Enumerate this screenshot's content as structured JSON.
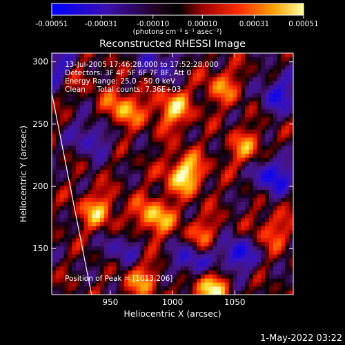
{
  "chart_data": {
    "type": "heatmap",
    "title": "Reconstructed RHESSI Image",
    "xlabel": "Heliocentric X (arcsec)",
    "ylabel": "Heliocentric Y (arcsec)",
    "x_ticks": [
      "950",
      "1000",
      "1050"
    ],
    "y_ticks": [
      "150",
      "200",
      "250",
      "300"
    ],
    "xlim": [
      903,
      1097
    ],
    "ylim": [
      113,
      307
    ],
    "grid": false,
    "colorbar": {
      "position": "top",
      "range": [
        -0.00051,
        0.00051
      ],
      "ticks": [
        "-0.00051",
        "-0.00031",
        "-0.00010",
        "0.00010",
        "0.00031",
        "0.00051"
      ],
      "unit": "(photons cm⁻² s⁻¹ asec⁻²)",
      "colors": [
        "#0000ff",
        "#400080",
        "#000000",
        "#c00000",
        "#ff8000",
        "#ffffff"
      ]
    },
    "annotations": {
      "time": "13-Jul-2005 17:46:28.000 to 17:52:28.000",
      "detectors": "Detectors: 3F 4F 5F 6F 7F 8F, Att 0",
      "energy": "Energy Range: 25.0 - 50.0 keV",
      "clean": "Clean     Total counts: 7.36E+03",
      "peak": "Position of Peak = [1013,206]"
    },
    "peak": {
      "x": 1013,
      "y": 206
    },
    "hotspots": [
      {
        "x": 1010,
        "y": 210,
        "v": 1.0
      },
      {
        "x": 960,
        "y": 262,
        "v": 0.75
      },
      {
        "x": 1000,
        "y": 262,
        "v": 0.8
      },
      {
        "x": 985,
        "y": 175,
        "v": 0.85
      },
      {
        "x": 1030,
        "y": 118,
        "v": 0.9
      },
      {
        "x": 940,
        "y": 180,
        "v": 0.7
      },
      {
        "x": 1060,
        "y": 230,
        "v": 0.6
      },
      {
        "x": 1040,
        "y": 280,
        "v": 0.55
      },
      {
        "x": 975,
        "y": 125,
        "v": 0.6
      },
      {
        "x": 1080,
        "y": 165,
        "v": 0.5
      },
      {
        "x": 920,
        "y": 290,
        "v": 0.45
      },
      {
        "x": 1025,
        "y": 160,
        "v": 0.55
      }
    ],
    "coldspots": [
      {
        "x": 910,
        "y": 295,
        "v": -0.8
      },
      {
        "x": 1080,
        "y": 210,
        "v": -0.9
      },
      {
        "x": 1050,
        "y": 145,
        "v": -0.85
      },
      {
        "x": 1015,
        "y": 140,
        "v": -0.75
      },
      {
        "x": 935,
        "y": 240,
        "v": -0.6
      },
      {
        "x": 1085,
        "y": 275,
        "v": -0.7
      },
      {
        "x": 990,
        "y": 300,
        "v": -0.55
      },
      {
        "x": 960,
        "y": 150,
        "v": -0.5
      }
    ],
    "limb_line": {
      "x1": 903,
      "y1": 275,
      "x2": 935,
      "y2": 113
    }
  },
  "footer": {
    "date": "1-May-2022 03:22"
  }
}
